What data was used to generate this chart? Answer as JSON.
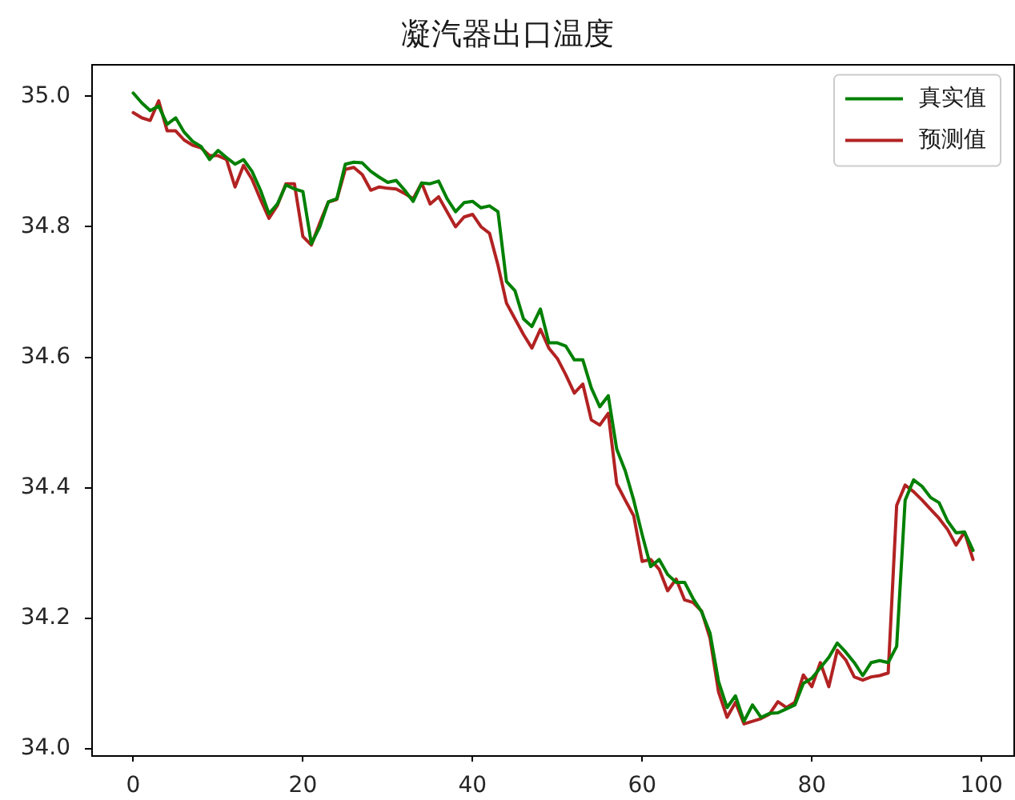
{
  "chart_data": {
    "type": "line",
    "title": "凝汽器出口温度",
    "x": [
      0,
      1,
      2,
      3,
      4,
      5,
      6,
      7,
      8,
      9,
      10,
      11,
      12,
      13,
      14,
      15,
      16,
      17,
      18,
      19,
      20,
      21,
      22,
      23,
      24,
      25,
      26,
      27,
      28,
      29,
      30,
      31,
      32,
      33,
      34,
      35,
      36,
      37,
      38,
      39,
      40,
      41,
      42,
      43,
      44,
      45,
      46,
      47,
      48,
      49,
      50,
      51,
      52,
      53,
      54,
      55,
      56,
      57,
      58,
      59,
      60,
      61,
      62,
      63,
      64,
      65,
      66,
      67,
      68,
      69,
      70,
      71,
      72,
      73,
      74,
      75,
      76,
      77,
      78,
      79,
      80,
      81,
      82,
      83,
      84,
      85,
      86,
      87,
      88,
      89,
      90,
      91,
      92,
      93,
      94,
      95,
      96,
      97,
      98,
      99
    ],
    "series": [
      {
        "name": "真实值",
        "color": "#008000",
        "values": [
          35.005,
          34.99,
          34.978,
          34.985,
          34.957,
          34.967,
          34.945,
          34.931,
          34.923,
          34.903,
          34.917,
          34.906,
          34.896,
          34.903,
          34.885,
          34.856,
          34.82,
          34.835,
          34.864,
          34.858,
          34.854,
          34.774,
          34.8,
          34.838,
          34.843,
          34.896,
          34.899,
          34.898,
          34.885,
          34.876,
          34.868,
          34.871,
          34.856,
          34.839,
          34.867,
          34.866,
          34.87,
          34.843,
          34.823,
          34.837,
          34.839,
          34.829,
          34.832,
          34.823,
          34.716,
          34.702,
          34.659,
          34.647,
          34.674,
          34.622,
          34.622,
          34.617,
          34.596,
          34.596,
          34.553,
          34.524,
          34.541,
          34.459,
          34.426,
          34.381,
          34.328,
          34.279,
          34.29,
          34.267,
          34.255,
          34.255,
          34.23,
          34.21,
          34.177,
          34.103,
          34.063,
          34.081,
          34.042,
          34.067,
          34.048,
          34.054,
          34.055,
          34.061,
          34.067,
          34.1,
          34.108,
          34.124,
          34.14,
          34.162,
          34.148,
          34.132,
          34.112,
          34.132,
          34.135,
          34.132,
          34.157,
          34.381,
          34.412,
          34.402,
          34.385,
          34.377,
          34.349,
          34.331,
          34.332,
          34.304
        ]
      },
      {
        "name": "预测值",
        "color": "#b22222",
        "values": [
          34.975,
          34.967,
          34.963,
          34.993,
          34.947,
          34.947,
          34.933,
          34.925,
          34.921,
          34.909,
          34.909,
          34.903,
          34.861,
          34.894,
          34.873,
          34.842,
          34.813,
          34.833,
          34.866,
          34.866,
          34.785,
          34.772,
          34.806,
          34.838,
          34.842,
          34.888,
          34.891,
          34.88,
          34.856,
          34.861,
          34.859,
          34.858,
          34.851,
          34.843,
          34.867,
          34.835,
          34.846,
          34.823,
          34.8,
          34.815,
          34.819,
          34.8,
          34.79,
          34.741,
          34.683,
          34.659,
          34.635,
          34.614,
          34.643,
          34.614,
          34.598,
          34.573,
          34.545,
          34.559,
          34.504,
          34.496,
          34.514,
          34.406,
          34.381,
          34.357,
          34.287,
          34.29,
          34.275,
          34.242,
          34.26,
          34.228,
          34.224,
          34.211,
          34.169,
          34.087,
          34.048,
          34.071,
          34.038,
          34.042,
          34.046,
          34.053,
          34.072,
          34.063,
          34.071,
          34.113,
          34.095,
          34.132,
          34.095,
          34.151,
          34.136,
          34.11,
          34.105,
          34.11,
          34.112,
          34.116,
          34.373,
          34.404,
          34.394,
          34.381,
          34.367,
          34.353,
          34.336,
          34.312,
          34.332,
          34.29
        ]
      }
    ],
    "xlim": [
      -4.95,
      103.95
    ],
    "xticks": [
      0,
      20,
      40,
      60,
      80,
      100
    ],
    "ylim": [
      33.99,
      35.05
    ],
    "yticks": [
      {
        "value": 34,
        "label": "34.0"
      },
      34.2,
      34.4,
      34.6,
      34.8,
      {
        "value": 35,
        "label": "35.0"
      }
    ],
    "grid": false,
    "legend": "top right",
    "marker": "none",
    "line_style": "solid"
  }
}
